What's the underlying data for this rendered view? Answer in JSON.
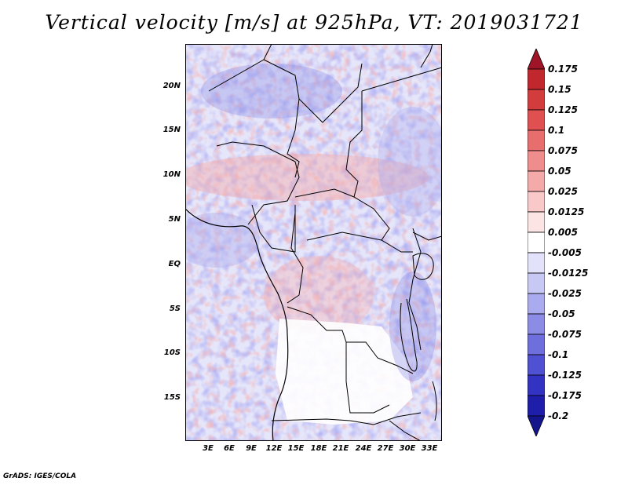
{
  "title": "Vertical velocity [m/s] at 925hPa, VT: 2019031721",
  "credit": "GrADS: IGES/COLA",
  "lat_labels": [
    "20N",
    "15N",
    "10N",
    "5N",
    "EQ",
    "5S",
    "10S",
    "15S"
  ],
  "lon_labels": [
    "3E",
    "6E",
    "9E",
    "12E",
    "15E",
    "18E",
    "21E",
    "24E",
    "27E",
    "30E",
    "33E"
  ],
  "colorbar": {
    "labels": [
      "0.175",
      "0.15",
      "0.125",
      "0.1",
      "0.075",
      "0.05",
      "0.025",
      "0.0125",
      "0.005",
      "-0.005",
      "-0.0125",
      "-0.025",
      "-0.05",
      "-0.075",
      "-0.1",
      "-0.125",
      "-0.175",
      "-0.2"
    ],
    "colors": [
      "#a01428",
      "#c0282d",
      "#d23c3c",
      "#e05050",
      "#e86e6e",
      "#ef8c8c",
      "#f5aaaa",
      "#f9c8c8",
      "#fce4e4",
      "#ffffff",
      "#e2e2fa",
      "#c8c8f5",
      "#aaaaee",
      "#8c8ce6",
      "#6e6edc",
      "#5050d2",
      "#3232c3",
      "#1e1eaa",
      "#14148c"
    ]
  }
}
